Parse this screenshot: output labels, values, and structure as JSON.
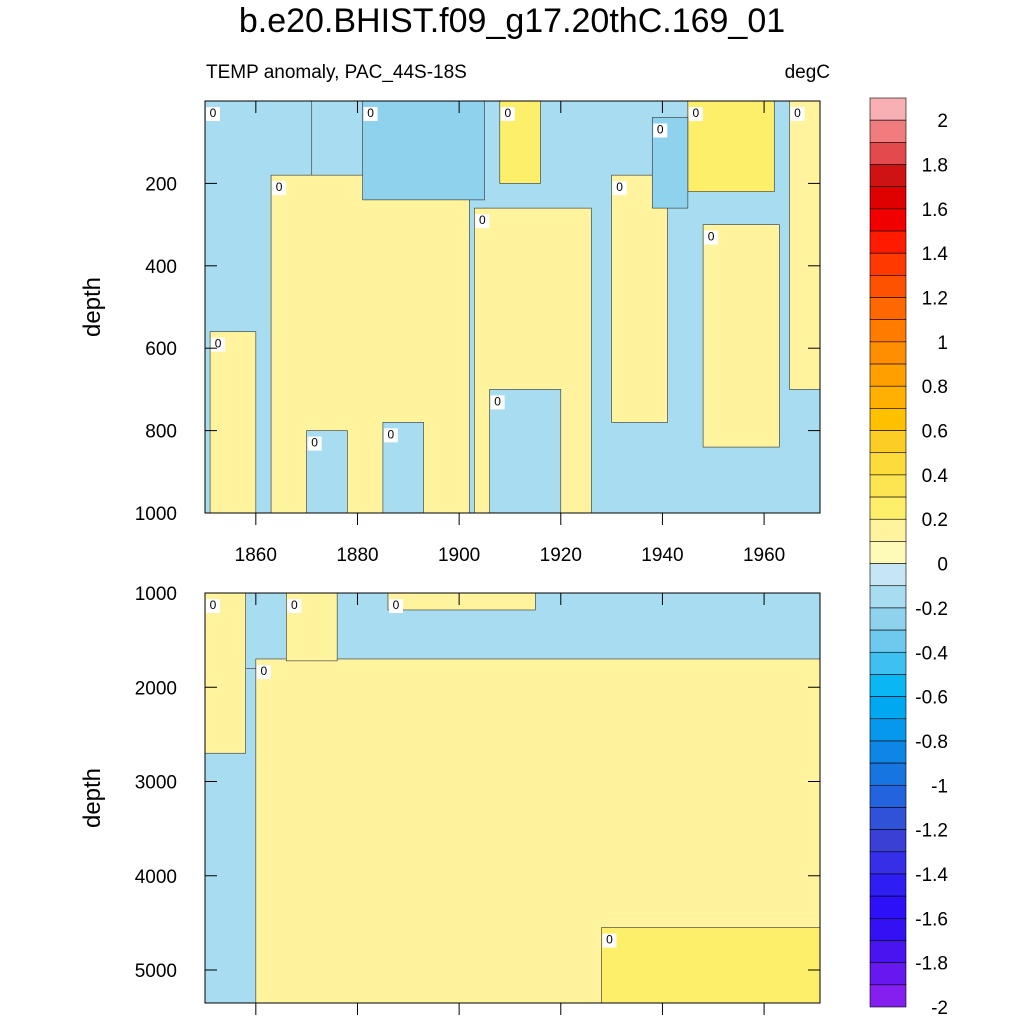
{
  "chart_data": {
    "type": "heatmap",
    "title": "b.e20.BHIST.f09_g17.20thC.169_01",
    "subtitle_left": "TEMP anomaly, PAC_44S-18S",
    "subtitle_right": "degC",
    "xlim": [
      1850,
      1971
    ],
    "x_ticks": [
      1860,
      1880,
      1900,
      1920,
      1940,
      1960
    ],
    "contour_label": "0",
    "panels": [
      {
        "name": "upper",
        "ylabel": "depth",
        "ylim": [
          0,
          1000
        ],
        "y_ticks": [
          200,
          400,
          600,
          800,
          1000
        ],
        "regions": [
          {
            "value": -0.1,
            "x": [
              1850,
              1871
            ],
            "y": [
              0,
              1000
            ]
          },
          {
            "value": 0.1,
            "x": [
              1851,
              1860
            ],
            "y": [
              560,
              1000
            ]
          },
          {
            "value": 0.1,
            "x": [
              1863,
              1902
            ],
            "y": [
              180,
              1000
            ]
          },
          {
            "value": -0.1,
            "x": [
              1870,
              1878
            ],
            "y": [
              800,
              1000
            ]
          },
          {
            "value": -0.1,
            "x": [
              1885,
              1893
            ],
            "y": [
              780,
              1000
            ]
          },
          {
            "value": -0.3,
            "x": [
              1881,
              1905
            ],
            "y": [
              0,
              240
            ]
          },
          {
            "value": 0.1,
            "x": [
              1903,
              1926
            ],
            "y": [
              260,
              1000
            ]
          },
          {
            "value": -0.1,
            "x": [
              1906,
              1920
            ],
            "y": [
              700,
              1000
            ]
          },
          {
            "value": 0.1,
            "x": [
              1930,
              1941
            ],
            "y": [
              180,
              780
            ]
          },
          {
            "value": 0.3,
            "x": [
              1908,
              1916
            ],
            "y": [
              0,
              200
            ]
          },
          {
            "value": 0.3,
            "x": [
              1945,
              1962
            ],
            "y": [
              0,
              220
            ]
          },
          {
            "value": -0.3,
            "x": [
              1938,
              1945
            ],
            "y": [
              40,
              260
            ]
          },
          {
            "value": 0.1,
            "x": [
              1948,
              1963
            ],
            "y": [
              300,
              840
            ]
          },
          {
            "value": 0.1,
            "x": [
              1965,
              1971
            ],
            "y": [
              0,
              700
            ]
          }
        ]
      },
      {
        "name": "lower",
        "ylabel": "depth",
        "ylim": [
          1000,
          5350
        ],
        "y_ticks": [
          1000,
          2000,
          3000,
          4000,
          5000
        ],
        "regions": [
          {
            "value": -0.1,
            "x": [
              1850,
              1971
            ],
            "y": [
              1000,
              1800
            ]
          },
          {
            "value": 0.1,
            "x": [
              1850,
              1858
            ],
            "y": [
              1000,
              2700
            ]
          },
          {
            "value": 0.1,
            "x": [
              1860,
              1971
            ],
            "y": [
              1700,
              5350
            ]
          },
          {
            "value": 0.1,
            "x": [
              1866,
              1876
            ],
            "y": [
              1000,
              1720
            ]
          },
          {
            "value": 0.1,
            "x": [
              1886,
              1915
            ],
            "y": [
              1000,
              1180
            ]
          },
          {
            "value": 0.3,
            "x": [
              1928,
              1971
            ],
            "y": [
              4550,
              5350
            ]
          }
        ]
      }
    ],
    "colorbar": {
      "min": -2,
      "max": 2,
      "step": 0.1,
      "tick_labels": [
        "2",
        "1.8",
        "1.6",
        "1.4",
        "1.2",
        "1",
        "0.8",
        "0.6",
        "0.4",
        "0.2",
        "0",
        "-0.2",
        "-0.4",
        "-0.6",
        "-0.8",
        "-1",
        "-1.2",
        "-1.4",
        "-1.6",
        "-1.8",
        "-2"
      ],
      "colors": [
        "#f8b0b4",
        "#f07c7e",
        "#e34a4e",
        "#cf1212",
        "#df0000",
        "#f20000",
        "#ff1a00",
        "#ff3a00",
        "#ff5200",
        "#ff6800",
        "#ff7c00",
        "#ff8e00",
        "#ffa000",
        "#ffb000",
        "#ffc000",
        "#fbcd25",
        "#fddb3a",
        "#fde451",
        "#feef6a",
        "#fff39e",
        "#fefbb9",
        "#c6e6f6",
        "#a8dcf0",
        "#8ed2ee",
        "#6ec9ef",
        "#3fc0f2",
        "#0ab6f4",
        "#00a8f2",
        "#0698ec",
        "#0d86e6",
        "#1775e2",
        "#2363de",
        "#2f52d9",
        "#3a40d4",
        "#3530e8",
        "#2e1ef4",
        "#2d10f7",
        "#3410f5",
        "#4a14f0",
        "#6618ee",
        "#851ff0"
      ]
    }
  }
}
